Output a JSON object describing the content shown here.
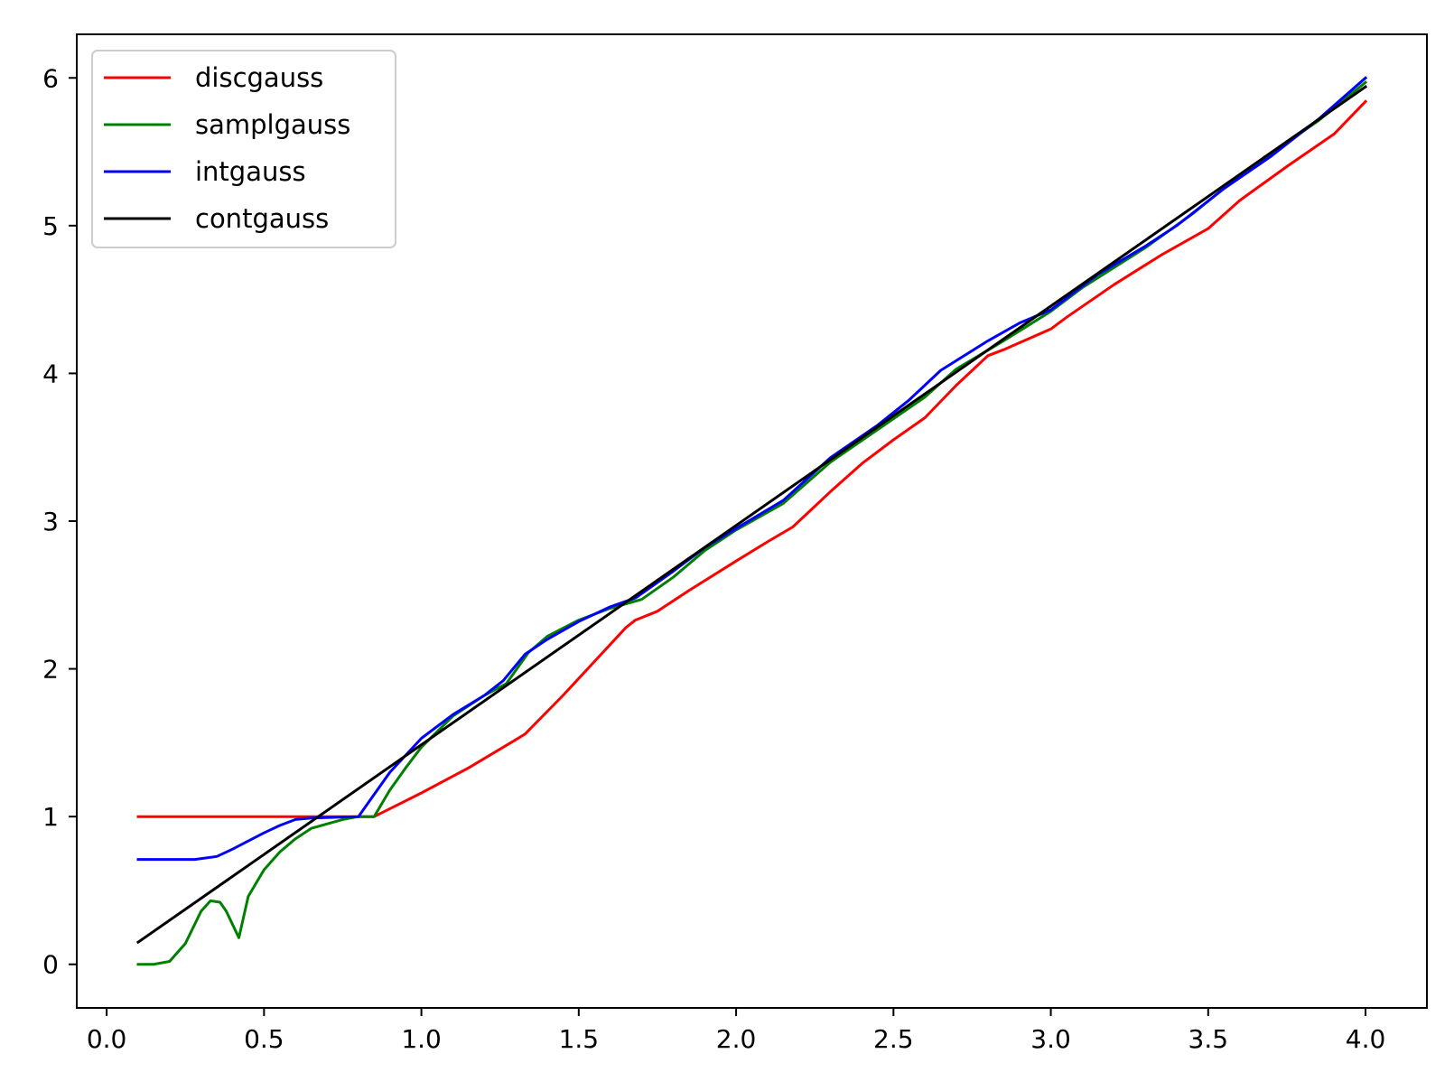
{
  "chart_data": {
    "type": "line",
    "title": "",
    "xlabel": "",
    "ylabel": "",
    "xlim": [
      -0.095,
      4.195
    ],
    "ylim": [
      -0.295,
      6.295
    ],
    "grid": false,
    "legend_position": "top-left",
    "x_ticks": [
      0.0,
      0.5,
      1.0,
      1.5,
      2.0,
      2.5,
      3.0,
      3.5,
      4.0
    ],
    "x_tick_labels": [
      "0.0",
      "0.5",
      "1.0",
      "1.5",
      "2.0",
      "2.5",
      "3.0",
      "3.5",
      "4.0"
    ],
    "y_ticks": [
      0,
      1,
      2,
      3,
      4,
      5,
      6
    ],
    "y_tick_labels": [
      "0",
      "1",
      "2",
      "3",
      "4",
      "5",
      "6"
    ],
    "series": [
      {
        "name": "discgauss",
        "color": "#ff0000",
        "points": [
          [
            0.1,
            1.0
          ],
          [
            0.5,
            1.0
          ],
          [
            0.85,
            1.0
          ],
          [
            1.0,
            1.16
          ],
          [
            1.15,
            1.33
          ],
          [
            1.3,
            1.52
          ],
          [
            1.33,
            1.56
          ],
          [
            1.45,
            1.82
          ],
          [
            1.55,
            2.05
          ],
          [
            1.65,
            2.28
          ],
          [
            1.68,
            2.33
          ],
          [
            1.75,
            2.39
          ],
          [
            1.85,
            2.53
          ],
          [
            2.0,
            2.73
          ],
          [
            2.1,
            2.86
          ],
          [
            2.18,
            2.96
          ],
          [
            2.22,
            3.04
          ],
          [
            2.3,
            3.2
          ],
          [
            2.4,
            3.39
          ],
          [
            2.5,
            3.55
          ],
          [
            2.6,
            3.7
          ],
          [
            2.7,
            3.92
          ],
          [
            2.8,
            4.12
          ],
          [
            2.85,
            4.16
          ],
          [
            3.0,
            4.3
          ],
          [
            3.05,
            4.38
          ],
          [
            3.2,
            4.6
          ],
          [
            3.35,
            4.8
          ],
          [
            3.5,
            4.98
          ],
          [
            3.6,
            5.17
          ],
          [
            3.75,
            5.4
          ],
          [
            3.9,
            5.62
          ],
          [
            4.0,
            5.84
          ]
        ]
      },
      {
        "name": "samplgauss",
        "color": "#008000",
        "points": [
          [
            0.1,
            0.0
          ],
          [
            0.15,
            0.0
          ],
          [
            0.2,
            0.02
          ],
          [
            0.25,
            0.14
          ],
          [
            0.3,
            0.36
          ],
          [
            0.33,
            0.43
          ],
          [
            0.36,
            0.42
          ],
          [
            0.38,
            0.36
          ],
          [
            0.42,
            0.18
          ],
          [
            0.45,
            0.46
          ],
          [
            0.5,
            0.64
          ],
          [
            0.55,
            0.76
          ],
          [
            0.6,
            0.85
          ],
          [
            0.65,
            0.92
          ],
          [
            0.7,
            0.95
          ],
          [
            0.75,
            0.98
          ],
          [
            0.8,
            1.0
          ],
          [
            0.85,
            1.0
          ],
          [
            0.9,
            1.18
          ],
          [
            0.95,
            1.33
          ],
          [
            1.0,
            1.47
          ],
          [
            1.1,
            1.68
          ],
          [
            1.2,
            1.82
          ],
          [
            1.27,
            1.9
          ],
          [
            1.34,
            2.11
          ],
          [
            1.4,
            2.22
          ],
          [
            1.5,
            2.33
          ],
          [
            1.6,
            2.41
          ],
          [
            1.7,
            2.47
          ],
          [
            1.8,
            2.62
          ],
          [
            1.9,
            2.8
          ],
          [
            2.0,
            2.94
          ],
          [
            2.15,
            3.12
          ],
          [
            2.3,
            3.4
          ],
          [
            2.45,
            3.62
          ],
          [
            2.6,
            3.84
          ],
          [
            2.7,
            4.03
          ],
          [
            2.85,
            4.22
          ],
          [
            3.0,
            4.42
          ],
          [
            3.1,
            4.58
          ],
          [
            3.3,
            4.85
          ],
          [
            3.45,
            5.08
          ],
          [
            3.6,
            5.34
          ],
          [
            3.85,
            5.71
          ],
          [
            4.0,
            5.97
          ]
        ]
      },
      {
        "name": "intgauss",
        "color": "#0000ff",
        "points": [
          [
            0.1,
            0.71
          ],
          [
            0.28,
            0.71
          ],
          [
            0.35,
            0.73
          ],
          [
            0.4,
            0.78
          ],
          [
            0.5,
            0.89
          ],
          [
            0.55,
            0.94
          ],
          [
            0.6,
            0.98
          ],
          [
            0.65,
            0.99
          ],
          [
            0.8,
            1.0
          ],
          [
            0.85,
            1.15
          ],
          [
            0.9,
            1.3
          ],
          [
            1.0,
            1.53
          ],
          [
            1.1,
            1.69
          ],
          [
            1.2,
            1.82
          ],
          [
            1.26,
            1.92
          ],
          [
            1.33,
            2.1
          ],
          [
            1.4,
            2.2
          ],
          [
            1.5,
            2.32
          ],
          [
            1.6,
            2.42
          ],
          [
            1.68,
            2.48
          ],
          [
            1.8,
            2.66
          ],
          [
            1.9,
            2.82
          ],
          [
            2.0,
            2.95
          ],
          [
            2.15,
            3.14
          ],
          [
            2.3,
            3.43
          ],
          [
            2.45,
            3.65
          ],
          [
            2.55,
            3.82
          ],
          [
            2.65,
            4.02
          ],
          [
            2.8,
            4.22
          ],
          [
            2.9,
            4.34
          ],
          [
            3.0,
            4.43
          ],
          [
            3.15,
            4.67
          ],
          [
            3.3,
            4.86
          ],
          [
            3.4,
            5.0
          ],
          [
            3.55,
            5.25
          ],
          [
            3.7,
            5.47
          ],
          [
            3.85,
            5.72
          ],
          [
            4.0,
            6.0
          ]
        ]
      },
      {
        "name": "contgauss",
        "color": "#000000",
        "points": [
          [
            0.1,
            0.15
          ],
          [
            4.0,
            5.94
          ]
        ]
      }
    ]
  }
}
